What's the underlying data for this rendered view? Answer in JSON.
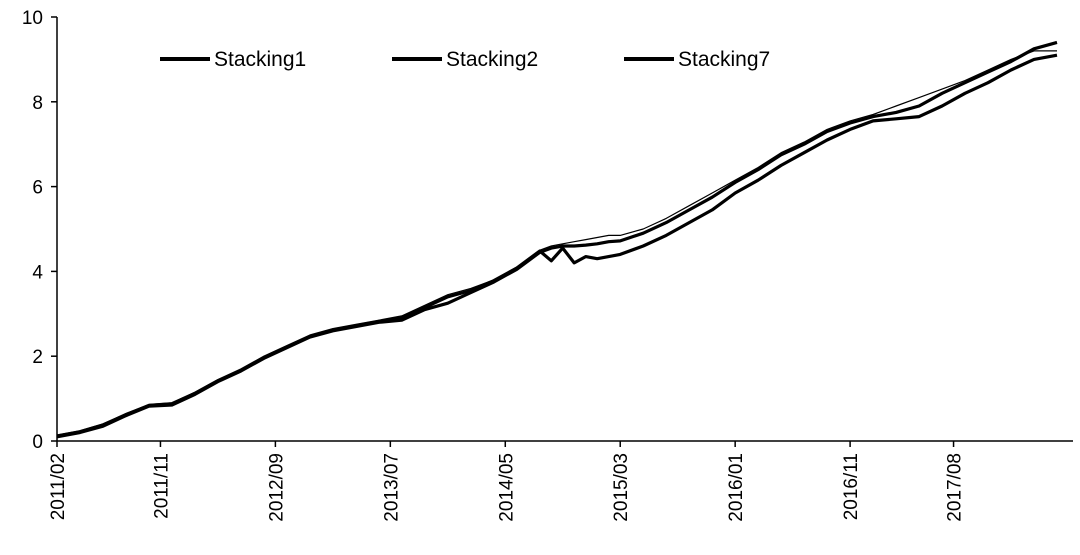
{
  "chart_data": {
    "type": "line",
    "title": "",
    "xlabel": "",
    "ylabel": "",
    "ylim": [
      0,
      10
    ],
    "yticks": [
      0,
      2,
      4,
      6,
      8,
      10
    ],
    "xlim": [
      "2011/02",
      "2018/05"
    ],
    "xtick_labels": [
      "2011/02",
      "2011/11",
      "2012/09",
      "2013/07",
      "2014/05",
      "2015/03",
      "2016/01",
      "2016/11",
      "2017/08"
    ],
    "grid": false,
    "legend": "top-left",
    "line_color": "#000000",
    "series": [
      {
        "name": "Stacking1",
        "x": [
          "2011/02",
          "2011/04",
          "2011/06",
          "2011/08",
          "2011/10",
          "2011/12",
          "2012/02",
          "2012/04",
          "2012/06",
          "2012/08",
          "2012/10",
          "2012/12",
          "2013/02",
          "2013/04",
          "2013/06",
          "2013/08",
          "2013/10",
          "2013/12",
          "2014/02",
          "2014/04",
          "2014/06",
          "2014/08",
          "2014/09",
          "2014/10",
          "2014/11",
          "2014/12",
          "2015/01",
          "2015/02",
          "2015/03",
          "2015/05",
          "2015/07",
          "2015/09",
          "2015/11",
          "2016/01",
          "2016/03",
          "2016/05",
          "2016/07",
          "2016/09",
          "2016/11",
          "2017/01",
          "2017/03",
          "2017/05",
          "2017/07",
          "2017/09",
          "2017/11",
          "2018/01",
          "2018/03",
          "2018/05"
        ],
        "values": [
          0.1,
          0.2,
          0.35,
          0.6,
          0.82,
          0.85,
          1.1,
          1.4,
          1.65,
          1.95,
          2.2,
          2.45,
          2.6,
          2.7,
          2.8,
          2.85,
          3.1,
          3.25,
          3.5,
          3.75,
          4.05,
          4.45,
          4.55,
          4.6,
          4.6,
          4.62,
          4.65,
          4.7,
          4.72,
          4.9,
          5.15,
          5.45,
          5.75,
          6.1,
          6.4,
          6.75,
          7.0,
          7.3,
          7.5,
          7.65,
          7.75,
          7.9,
          8.2,
          8.45,
          8.7,
          8.95,
          9.25,
          9.4
        ]
      },
      {
        "name": "Stacking2",
        "x": [
          "2011/02",
          "2011/04",
          "2011/06",
          "2011/08",
          "2011/10",
          "2011/12",
          "2012/02",
          "2012/04",
          "2012/06",
          "2012/08",
          "2012/10",
          "2012/12",
          "2013/02",
          "2013/04",
          "2013/06",
          "2013/08",
          "2013/10",
          "2013/12",
          "2014/02",
          "2014/04",
          "2014/06",
          "2014/08",
          "2014/09",
          "2014/10",
          "2014/11",
          "2014/12",
          "2015/01",
          "2015/02",
          "2015/03",
          "2015/05",
          "2015/07",
          "2015/09",
          "2015/11",
          "2016/01",
          "2016/03",
          "2016/05",
          "2016/07",
          "2016/09",
          "2016/11",
          "2017/01",
          "2017/03",
          "2017/05",
          "2017/07",
          "2017/09",
          "2017/11",
          "2018/01",
          "2018/03",
          "2018/05"
        ],
        "values": [
          0.12,
          0.22,
          0.38,
          0.62,
          0.84,
          0.88,
          1.12,
          1.42,
          1.66,
          1.97,
          2.22,
          2.46,
          2.62,
          2.72,
          2.82,
          2.9,
          3.15,
          3.4,
          3.55,
          3.78,
          4.08,
          4.48,
          4.25,
          4.55,
          4.2,
          4.35,
          4.3,
          4.35,
          4.4,
          4.6,
          4.85,
          5.15,
          5.45,
          5.85,
          6.15,
          6.5,
          6.8,
          7.1,
          7.35,
          7.55,
          7.6,
          7.65,
          7.9,
          8.2,
          8.45,
          8.75,
          9.0,
          9.1
        ]
      },
      {
        "name": "Stacking7",
        "x": [
          "2011/02",
          "2011/04",
          "2011/06",
          "2011/08",
          "2011/10",
          "2011/12",
          "2012/02",
          "2012/04",
          "2012/06",
          "2012/08",
          "2012/10",
          "2012/12",
          "2013/02",
          "2013/04",
          "2013/06",
          "2013/08",
          "2013/10",
          "2013/12",
          "2014/02",
          "2014/04",
          "2014/06",
          "2014/08",
          "2014/09",
          "2014/10",
          "2014/11",
          "2014/12",
          "2015/01",
          "2015/02",
          "2015/03",
          "2015/05",
          "2015/07",
          "2015/09",
          "2015/11",
          "2016/01",
          "2016/03",
          "2016/05",
          "2016/07",
          "2016/09",
          "2016/11",
          "2017/01",
          "2017/03",
          "2017/05",
          "2017/07",
          "2017/09",
          "2017/11",
          "2018/01",
          "2018/03",
          "2018/05"
        ],
        "values": [
          0.14,
          0.24,
          0.4,
          0.65,
          0.86,
          0.9,
          1.15,
          1.45,
          1.7,
          2.0,
          2.25,
          2.5,
          2.65,
          2.75,
          2.85,
          2.95,
          3.2,
          3.45,
          3.6,
          3.8,
          4.1,
          4.5,
          4.6,
          4.65,
          4.7,
          4.75,
          4.8,
          4.85,
          4.85,
          5.0,
          5.25,
          5.55,
          5.85,
          6.15,
          6.45,
          6.8,
          7.05,
          7.35,
          7.55,
          7.7,
          7.9,
          8.1,
          8.3,
          8.5,
          8.75,
          9.0,
          9.2,
          9.2
        ]
      }
    ]
  }
}
